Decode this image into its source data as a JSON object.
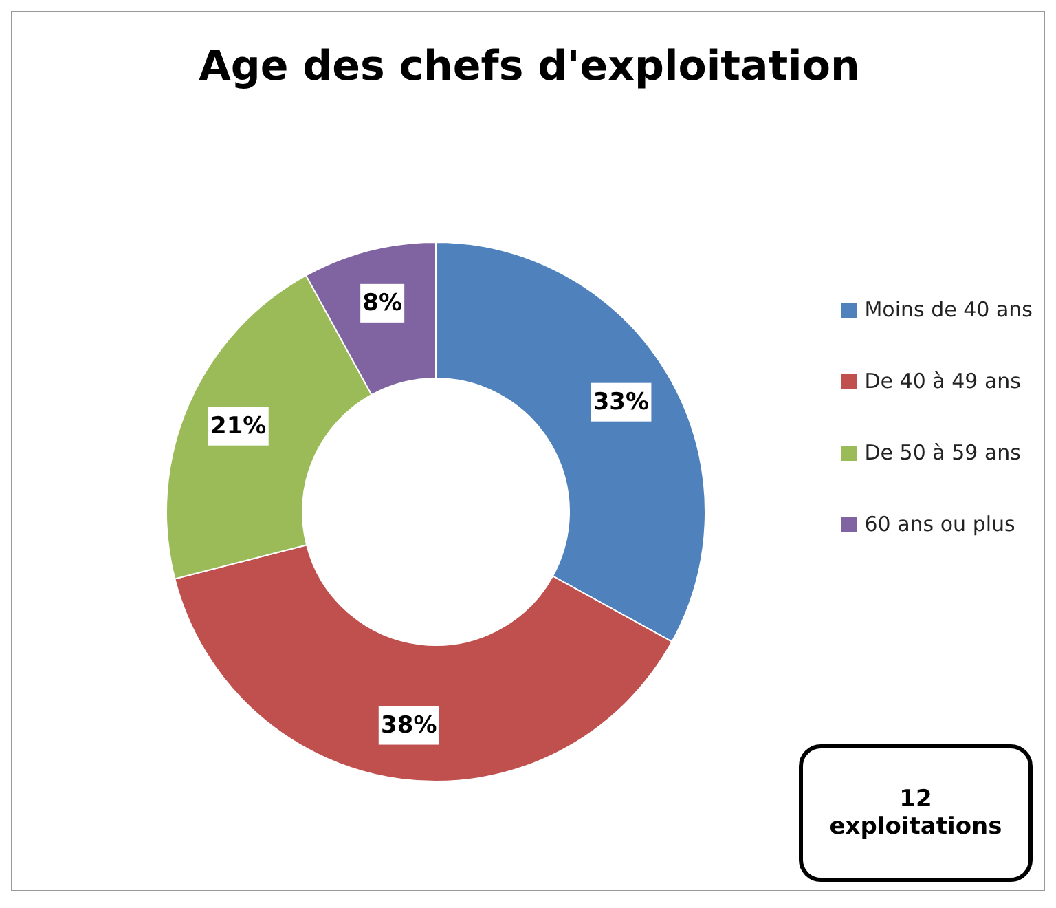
{
  "chart_data": {
    "type": "donut",
    "title": "Age des chefs d'exploitation",
    "categories": [
      "Moins de 40 ans",
      "De 40 à 49 ans",
      "De 50 à 59 ans",
      "60 ans ou plus"
    ],
    "values": [
      33,
      38,
      21,
      8
    ],
    "colors": [
      "#4f81bd",
      "#c0504d",
      "#9bbb59",
      "#8064a2"
    ],
    "value_labels": [
      "33%",
      "38%",
      "21%",
      "8%"
    ],
    "legend": "right",
    "annotations": [
      "12 exploitations"
    ]
  }
}
